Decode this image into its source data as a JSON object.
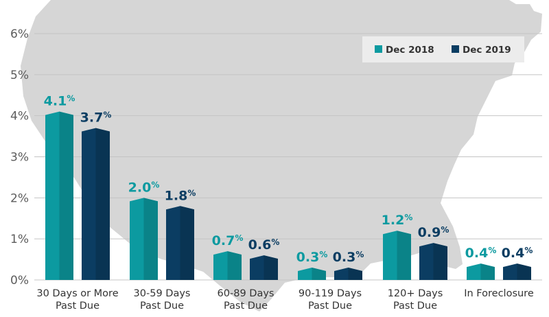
{
  "chart_data": {
    "type": "bar",
    "title": "",
    "xlabel": "",
    "ylabel": "",
    "ylim": [
      0,
      6
    ],
    "y_ticks": [
      "0%",
      "1%",
      "2%",
      "3%",
      "4%",
      "5%",
      "6%"
    ],
    "grid": true,
    "legend_position": "top-right",
    "background": "map of the contiguous United States",
    "categories": [
      [
        "30 Days or More",
        "Past Due"
      ],
      [
        "30-59 Days",
        "Past Due"
      ],
      [
        "60-89 Days",
        "Past Due"
      ],
      [
        "90-119 Days",
        "Past Due"
      ],
      [
        "120+ Days",
        "Past Due"
      ],
      [
        "In Foreclosure"
      ]
    ],
    "series": [
      {
        "name": "Dec 2018",
        "color": "#0c9aa0",
        "values": [
          4.1,
          2.0,
          0.7,
          0.3,
          1.2,
          0.4
        ],
        "labels": [
          "4.1",
          "2.0",
          "0.7",
          "0.3",
          "1.2",
          "0.4"
        ]
      },
      {
        "name": "Dec 2019",
        "color": "#0b3d62",
        "values": [
          3.7,
          1.8,
          0.6,
          0.3,
          0.9,
          0.4
        ],
        "labels": [
          "3.7",
          "1.8",
          "0.6",
          "0.3",
          "0.9",
          "0.4"
        ]
      }
    ],
    "value_suffix": "%"
  }
}
